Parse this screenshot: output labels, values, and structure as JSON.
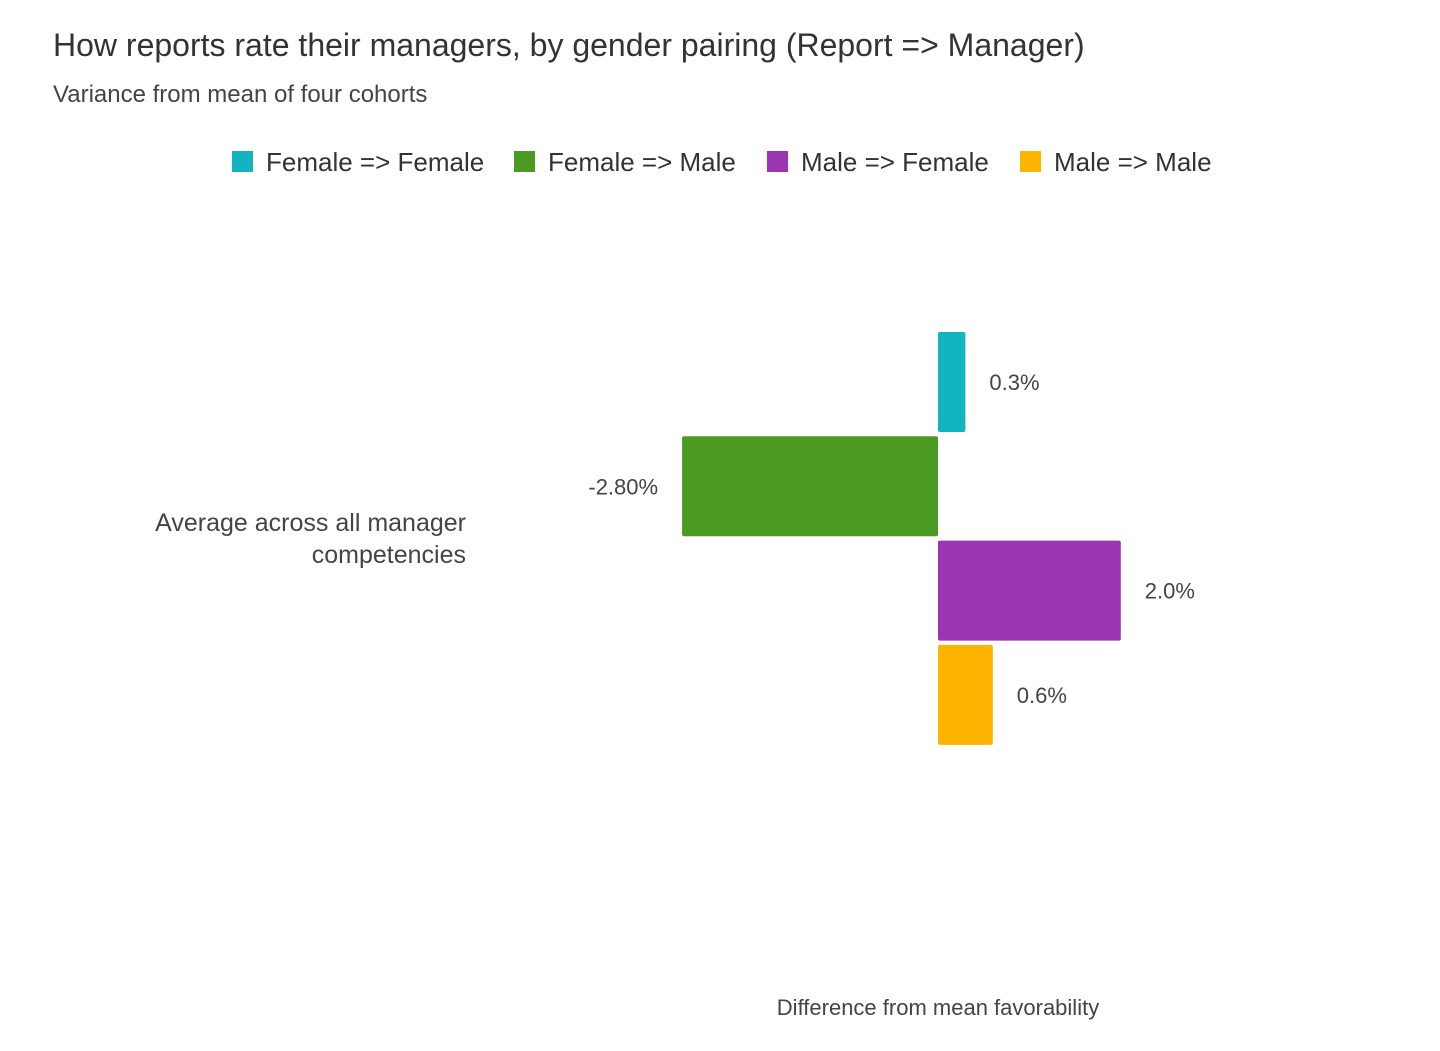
{
  "chart_data": {
    "type": "bar",
    "orientation": "horizontal",
    "title": "How reports rate their managers, by gender pairing (Report => Manager)",
    "subtitle": "Variance from mean of four cohorts",
    "categories": [
      "Average across all manager competencies"
    ],
    "category_lines": [
      "Average across all manager",
      "competencies"
    ],
    "xlabel": "Difference from mean favorability",
    "ylabel": "",
    "xlim": [
      -2.8,
      2.0
    ],
    "grid": false,
    "legend_position": "top",
    "series": [
      {
        "name": "Female => Female",
        "values": [
          0.3
        ],
        "label": "0.3%",
        "color": "#12b5bf"
      },
      {
        "name": "Female => Male",
        "values": [
          -2.8
        ],
        "label": "-2.80%",
        "color": "#4b9a21"
      },
      {
        "name": "Male => Female",
        "values": [
          2.0
        ],
        "label": "2.0%",
        "color": "#9b35b1"
      },
      {
        "name": "Male => Male",
        "values": [
          0.6
        ],
        "label": "0.6%",
        "color": "#ffb400"
      }
    ]
  }
}
